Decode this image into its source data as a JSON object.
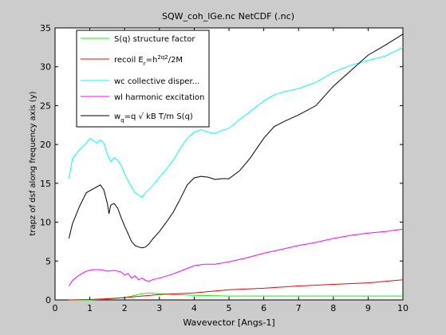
{
  "window": {
    "background_color": "#cccccc",
    "axes_background_color": "#ffffff"
  },
  "chart_data": {
    "type": "line",
    "title": "SQW_coh_lGe.nc NetCDF (.nc)",
    "xlabel": "Wavevector [Angs-1]",
    "ylabel": "trapz of dsf along frequency axis (y)",
    "xlim": [
      0,
      10
    ],
    "ylim": [
      0,
      35
    ],
    "xticks": [
      0,
      1,
      2,
      3,
      4,
      5,
      6,
      7,
      8,
      9,
      10
    ],
    "yticks": [
      0,
      5,
      10,
      15,
      20,
      25,
      30,
      35
    ],
    "grid": false,
    "legend_position": "top-left",
    "series": [
      {
        "name": "S(q) structure factor",
        "color": "#00ff00",
        "x": [
          0.4,
          1.0,
          1.5,
          2.0,
          2.3,
          2.5,
          2.7,
          3.0,
          3.5,
          4.0,
          5.0,
          6.0,
          7.0,
          8.0,
          9.0,
          10.0
        ],
        "y": [
          0.0,
          0.0,
          0.1,
          0.3,
          0.6,
          0.8,
          0.9,
          0.8,
          0.7,
          0.6,
          0.5,
          0.5,
          0.5,
          0.5,
          0.5,
          0.5
        ]
      },
      {
        "name": "recoil E_r=h^2q^2/2M",
        "color": "#ff0000",
        "x": [
          0.4,
          1.0,
          1.5,
          2.0,
          2.5,
          3.0,
          3.5,
          4.0,
          5.0,
          6.0,
          7.0,
          8.0,
          9.0,
          10.0
        ],
        "y": [
          0.0,
          0.05,
          0.15,
          0.3,
          0.5,
          0.7,
          0.8,
          0.9,
          1.3,
          1.5,
          1.8,
          2.0,
          2.2,
          2.6
        ]
      },
      {
        "name": "wc collective disper...",
        "color": "#00ffff",
        "x": [
          0.4,
          0.5,
          0.7,
          0.9,
          1.0,
          1.1,
          1.2,
          1.3,
          1.4,
          1.5,
          1.6,
          1.7,
          1.8,
          1.9,
          2.0,
          2.1,
          2.2,
          2.3,
          2.4,
          2.5,
          2.6,
          2.7,
          2.8,
          2.9,
          3.0,
          3.2,
          3.4,
          3.6,
          3.8,
          4.0,
          4.2,
          4.4,
          4.6,
          4.8,
          5.0,
          5.3,
          5.6,
          6.0,
          6.3,
          6.6,
          7.0,
          7.5,
          8.0,
          8.5,
          9.0,
          9.5,
          10.0
        ],
        "y": [
          15.6,
          18.2,
          19.3,
          20.2,
          20.8,
          20.5,
          20.2,
          20.6,
          20.2,
          18.8,
          17.8,
          18.3,
          18.0,
          17.3,
          16.2,
          15.3,
          14.5,
          13.8,
          13.5,
          13.2,
          13.8,
          14.2,
          14.7,
          15.2,
          15.8,
          16.8,
          18.0,
          19.5,
          20.8,
          21.6,
          21.9,
          21.6,
          21.4,
          21.8,
          22.1,
          23.2,
          24.2,
          25.6,
          26.4,
          26.8,
          27.2,
          28.0,
          29.3,
          30.2,
          30.8,
          31.4,
          32.5
        ]
      },
      {
        "name": "wl harmonic excitation",
        "color": "#ff00ff",
        "x": [
          0.4,
          0.5,
          0.7,
          0.9,
          1.1,
          1.3,
          1.5,
          1.7,
          1.9,
          2.0,
          2.1,
          2.2,
          2.3,
          2.4,
          2.5,
          2.6,
          2.7,
          2.8,
          3.0,
          3.3,
          3.6,
          4.0,
          4.3,
          4.6,
          5.0,
          5.5,
          6.0,
          6.5,
          7.0,
          7.5,
          8.0,
          8.5,
          9.0,
          9.5,
          10.0
        ],
        "y": [
          1.8,
          2.5,
          3.2,
          3.7,
          3.9,
          3.9,
          3.7,
          3.8,
          3.6,
          3.2,
          3.4,
          2.8,
          3.1,
          2.6,
          2.8,
          2.5,
          2.4,
          2.6,
          2.8,
          3.2,
          3.7,
          4.4,
          4.6,
          4.6,
          4.9,
          5.4,
          6.0,
          6.5,
          7.0,
          7.4,
          7.9,
          8.3,
          8.6,
          8.8,
          9.1
        ]
      },
      {
        "name": "w_q=q √ kB T/m S(q)",
        "color": "#000000",
        "x": [
          0.4,
          0.5,
          0.7,
          0.9,
          1.1,
          1.3,
          1.4,
          1.5,
          1.55,
          1.6,
          1.7,
          1.8,
          1.9,
          2.0,
          2.1,
          2.2,
          2.3,
          2.4,
          2.5,
          2.6,
          2.7,
          2.8,
          3.0,
          3.2,
          3.4,
          3.6,
          3.8,
          4.0,
          4.2,
          4.4,
          4.6,
          4.8,
          5.0,
          5.3,
          5.6,
          6.0,
          6.3,
          6.6,
          7.0,
          7.5,
          8.0,
          8.5,
          9.0,
          9.5,
          10.0
        ],
        "y": [
          7.9,
          9.8,
          12.0,
          13.8,
          14.3,
          14.8,
          14.2,
          12.5,
          11.1,
          12.2,
          12.4,
          11.8,
          10.6,
          9.5,
          8.5,
          7.5,
          7.0,
          6.8,
          6.7,
          6.8,
          7.2,
          7.8,
          8.8,
          10.0,
          11.3,
          13.0,
          14.8,
          15.7,
          15.9,
          15.8,
          15.5,
          15.6,
          15.6,
          16.6,
          18.2,
          20.8,
          22.3,
          23.0,
          23.8,
          25.0,
          27.5,
          29.5,
          31.5,
          32.8,
          34.2
        ]
      }
    ]
  }
}
